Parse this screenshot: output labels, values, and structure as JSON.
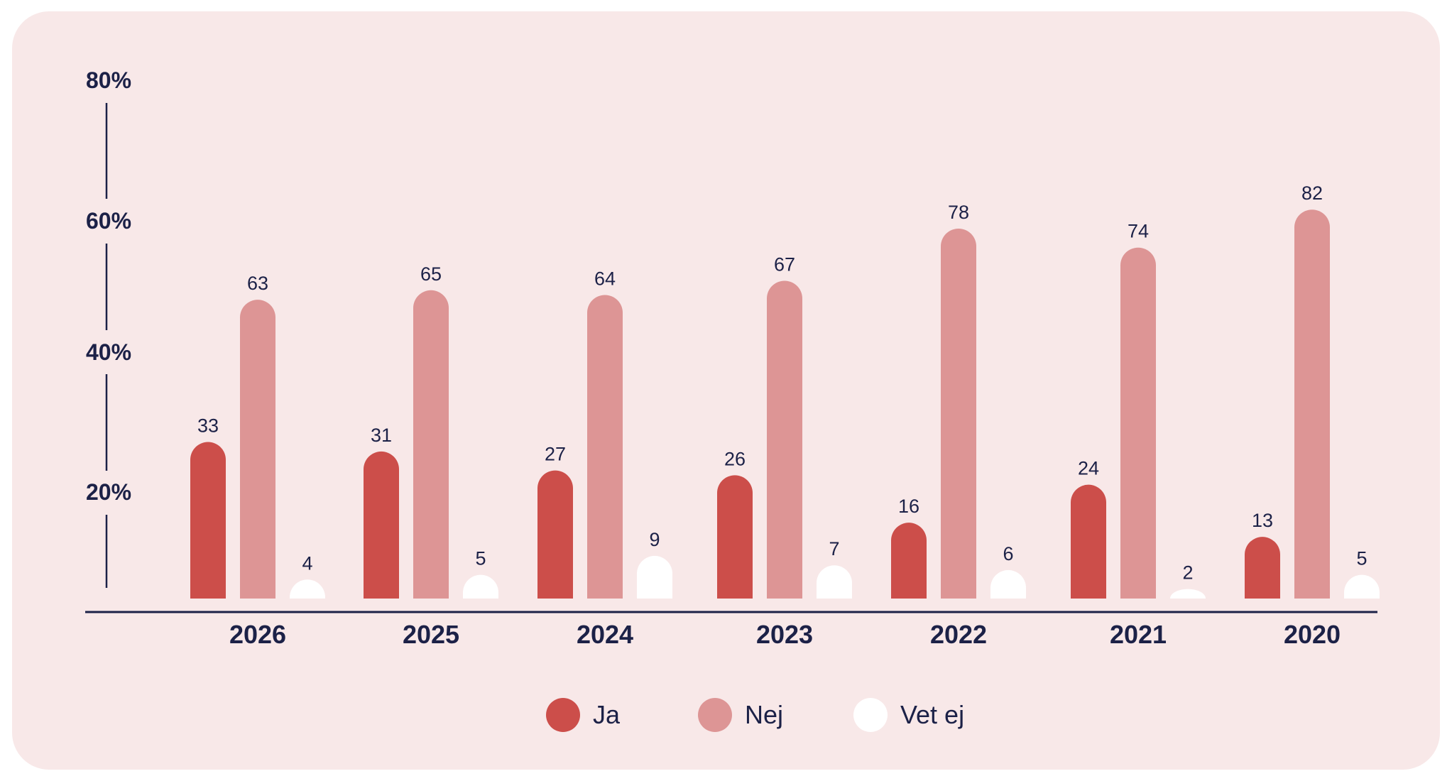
{
  "chart_data": {
    "type": "bar",
    "categories": [
      "2026",
      "2025",
      "2024",
      "2023",
      "2022",
      "2021",
      "2020"
    ],
    "series": [
      {
        "name": "Ja",
        "values": [
          33,
          31,
          27,
          26,
          16,
          24,
          13
        ],
        "color": "#cc4e4a"
      },
      {
        "name": "Nej",
        "values": [
          63,
          65,
          64,
          67,
          78,
          74,
          82
        ],
        "color": "#dd9595"
      },
      {
        "name": "Vet ej",
        "values": [
          4,
          5,
          9,
          7,
          6,
          2,
          5
        ],
        "color": "#ffffff"
      }
    ],
    "y_ticks": [
      "20%",
      "40%",
      "60%",
      "80%"
    ],
    "ylim": [
      0,
      80
    ],
    "grid": false,
    "legend_position": "bottom-center",
    "title": "",
    "xlabel": "",
    "ylabel": ""
  }
}
